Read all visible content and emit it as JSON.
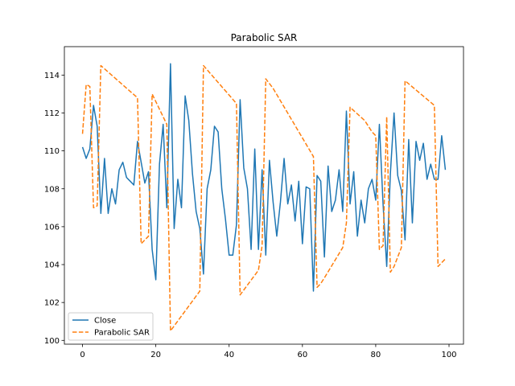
{
  "chart_data": {
    "type": "line",
    "title": "Parabolic SAR",
    "xlabel": "",
    "ylabel": "",
    "xlim": [
      -4.95,
      103.95
    ],
    "ylim": [
      99.8,
      115.5
    ],
    "xticks": [
      0,
      20,
      40,
      60,
      80,
      100
    ],
    "yticks": [
      100,
      102,
      104,
      106,
      108,
      110,
      112,
      114
    ],
    "grid": false,
    "legend_position": "lower-left",
    "series": [
      {
        "name": "Close",
        "color": "#1f77b4",
        "style": "solid",
        "x": [
          0,
          1,
          2,
          3,
          4,
          5,
          6,
          7,
          8,
          9,
          10,
          11,
          12,
          13,
          14,
          15,
          16,
          17,
          18,
          19,
          20,
          21,
          22,
          23,
          24,
          25,
          26,
          27,
          28,
          29,
          30,
          31,
          32,
          33,
          34,
          35,
          36,
          37,
          38,
          39,
          40,
          41,
          42,
          43,
          44,
          45,
          46,
          47,
          48,
          49,
          50,
          51,
          52,
          53,
          54,
          55,
          56,
          57,
          58,
          59,
          60,
          61,
          62,
          63,
          64,
          65,
          66,
          67,
          68,
          69,
          70,
          71,
          72,
          73,
          74,
          75,
          76,
          77,
          78,
          79,
          80,
          81,
          82,
          83,
          84,
          85,
          86,
          87,
          88,
          89,
          90,
          91,
          92,
          93,
          94,
          95,
          96,
          97,
          98,
          99
        ],
        "values": [
          110.2,
          109.6,
          110.1,
          112.4,
          111.3,
          106.7,
          109.6,
          106.7,
          108.0,
          107.2,
          109.0,
          109.4,
          108.6,
          108.4,
          108.2,
          110.5,
          109.4,
          108.3,
          108.9,
          104.8,
          103.2,
          109.3,
          111.4,
          107.0,
          114.6,
          105.9,
          108.5,
          107.0,
          112.9,
          111.6,
          108.8,
          106.8,
          105.9,
          103.5,
          108.0,
          109.0,
          111.3,
          111.0,
          108.0,
          106.4,
          104.5,
          104.5,
          106.1,
          112.7,
          109.1,
          108.0,
          104.8,
          110.1,
          104.8,
          109.0,
          104.5,
          109.5,
          107.3,
          105.5,
          107.3,
          109.6,
          107.2,
          108.2,
          106.3,
          108.4,
          105.1,
          108.1,
          108.0,
          102.6,
          108.7,
          108.4,
          104.4,
          109.2,
          106.8,
          107.4,
          109.0,
          106.8,
          112.1,
          107.2,
          108.9,
          105.5,
          107.4,
          106.2,
          108.0,
          108.5,
          107.4,
          111.4,
          107.2,
          103.9,
          108.8,
          112.0,
          108.7,
          107.9,
          105.3,
          110.6,
          106.2,
          110.5,
          109.5,
          110.4,
          108.5,
          109.3,
          108.5,
          108.5,
          110.8,
          109.0
        ]
      },
      {
        "name": "Parabolic SAR",
        "color": "#ff7f0e",
        "style": "dashed",
        "x": [
          0,
          1,
          2,
          3,
          4,
          5,
          15,
          16,
          17,
          18,
          19,
          23,
          24,
          32,
          33,
          42,
          43,
          48,
          49,
          50,
          52,
          63,
          64,
          65,
          66,
          71,
          72,
          73,
          77,
          79,
          80,
          81,
          82,
          83,
          84,
          85,
          86,
          87,
          88,
          96,
          97,
          98,
          99
        ],
        "values": [
          110.9,
          113.5,
          113.4,
          107.0,
          107.1,
          114.5,
          112.8,
          105.1,
          105.3,
          105.5,
          113.0,
          111.4,
          100.5,
          102.6,
          114.5,
          112.5,
          102.4,
          103.7,
          105.0,
          113.8,
          113.3,
          109.7,
          102.8,
          103.0,
          103.3,
          104.9,
          106.2,
          112.3,
          111.6,
          111.0,
          110.8,
          104.8,
          105.0,
          111.8,
          103.6,
          103.9,
          104.4,
          104.9,
          113.7,
          112.4,
          103.9,
          104.1,
          104.3
        ]
      }
    ]
  }
}
